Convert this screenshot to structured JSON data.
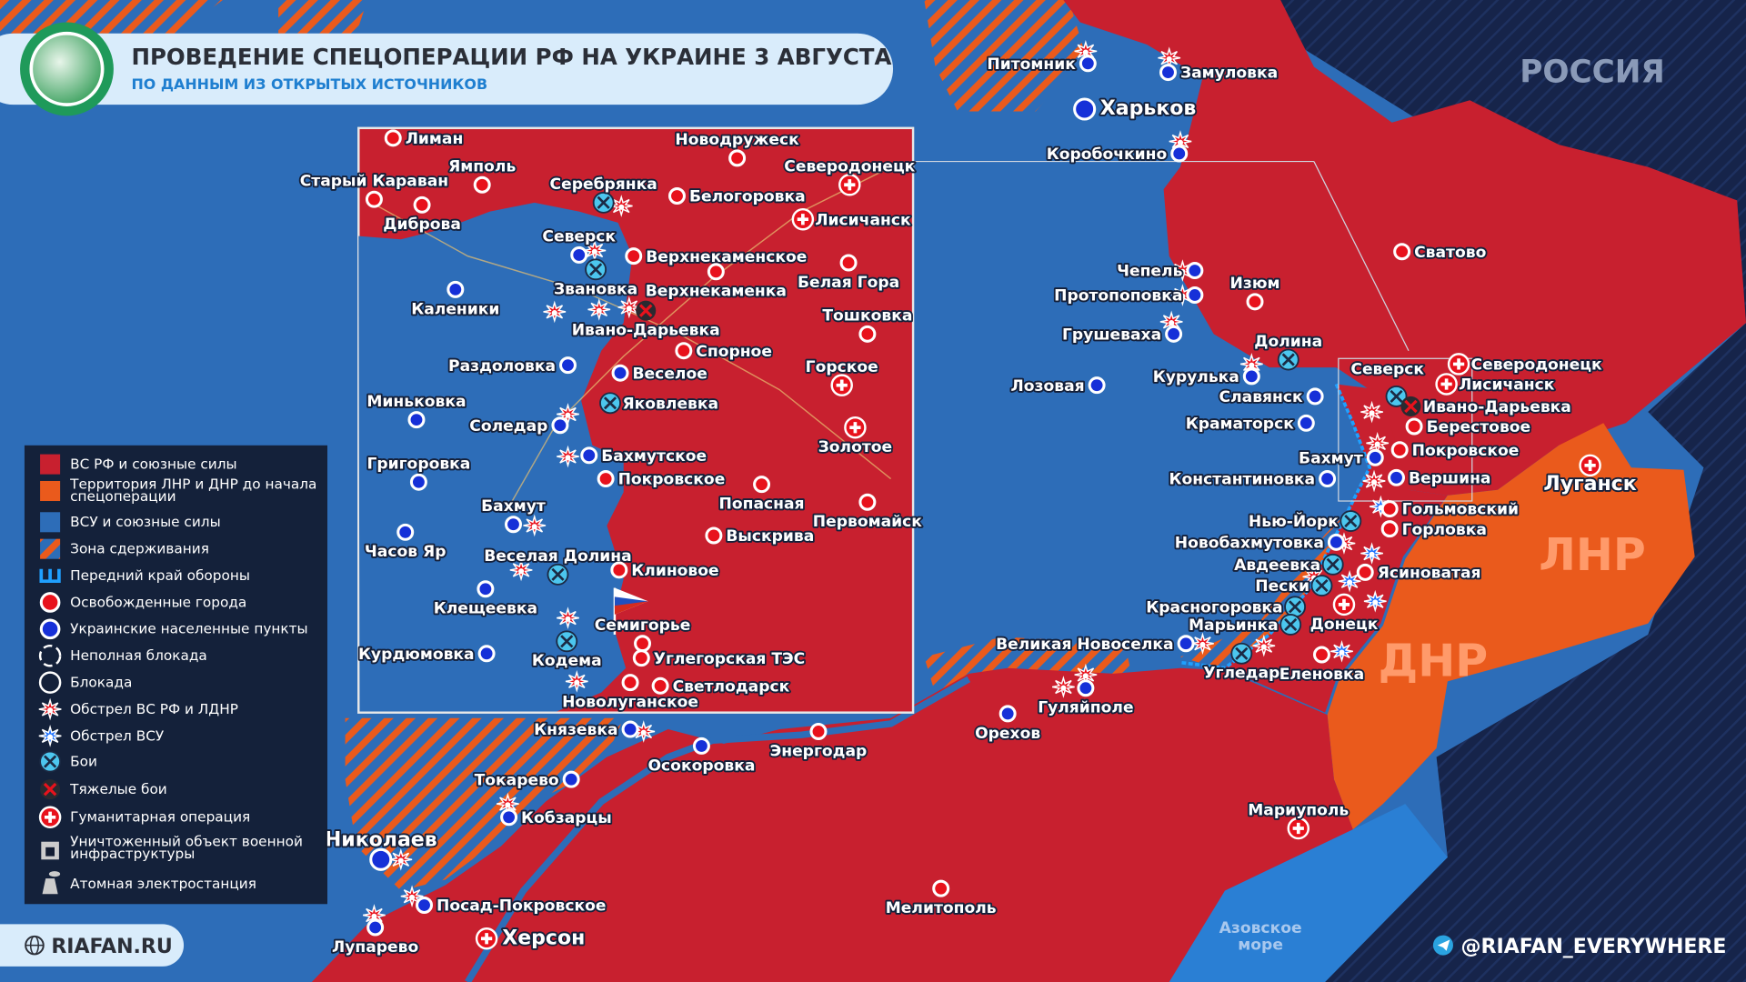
{
  "header": {
    "title": "ПРОВЕДЕНИЕ СПЕЦОПЕРАЦИИ РФ НА УКРАИНЕ 3 АВГУСТА",
    "subtitle": "ПО ДАННЫМ ИЗ ОТКРЫТЫХ ИСТОЧНИКОВ",
    "logo_icon": "globe-europe-icon"
  },
  "colors": {
    "russian_forces": "#c8202f",
    "lnr_dnr_territory": "#ea5a1c",
    "ukrainian_forces": "#2d6db8",
    "russia_territory": "#16244a",
    "sea": "#2a7fd4"
  },
  "legend": [
    {
      "icon": "red-square-icon",
      "label": "ВС РФ и союзные силы"
    },
    {
      "icon": "orange-square-icon",
      "label": "Территория ЛНР и ДНР до начала спецоперации"
    },
    {
      "icon": "blue-square-icon",
      "label": "ВСУ и союзные силы"
    },
    {
      "icon": "hatch-icon",
      "label": "Зона сдерживания"
    },
    {
      "icon": "defense-line-icon",
      "label": "Передний край обороны"
    },
    {
      "icon": "red-dot-icon",
      "label": "Освобожденные города"
    },
    {
      "icon": "blue-dot-icon",
      "label": "Украинские населенные пункты"
    },
    {
      "icon": "dashed-circle-icon",
      "label": "Неполная блокада"
    },
    {
      "icon": "circle-icon",
      "label": "Блокада"
    },
    {
      "icon": "red-explosion-icon",
      "label": "Обстрел ВС РФ и ЛДНР"
    },
    {
      "icon": "blue-explosion-icon",
      "label": "Обстрел ВСУ"
    },
    {
      "icon": "crossed-swords-icon",
      "label": "Бои"
    },
    {
      "icon": "red-x-icon",
      "label": "Тяжелые бои"
    },
    {
      "icon": "red-cross-icon",
      "label": "Гуманитарная операция"
    },
    {
      "icon": "destroyed-building-icon",
      "label": "Уничтоженный объект военной инфраструктуры"
    },
    {
      "icon": "nuclear-plant-icon",
      "label": "Атомная электростанция"
    }
  ],
  "regions": {
    "russia": "РОССИЯ",
    "lnr": "ЛНР",
    "dnr": "ДНР",
    "sea": "Азовское море"
  },
  "cities": [
    {
      "name": "Питомник",
      "marker": "ukrainian"
    },
    {
      "name": "Замуловка",
      "marker": "ukrainian"
    },
    {
      "name": "Харьков",
      "marker": "ukrainian"
    },
    {
      "name": "Коробочкино",
      "marker": "ukrainian"
    },
    {
      "name": "Сватово",
      "marker": "liberated"
    },
    {
      "name": "Чепель",
      "marker": "ukrainian"
    },
    {
      "name": "Изюм",
      "marker": "liberated"
    },
    {
      "name": "Протопоповка",
      "marker": "ukrainian"
    },
    {
      "name": "Грушеваха",
      "marker": "ukrainian"
    },
    {
      "name": "Долина",
      "marker": "fighting"
    },
    {
      "name": "Лозовая",
      "marker": "ukrainian"
    },
    {
      "name": "Курулька",
      "marker": "ukrainian"
    },
    {
      "name": "Славянск",
      "marker": "ukrainian"
    },
    {
      "name": "Краматорск",
      "marker": "ukrainian"
    },
    {
      "name": "Северск",
      "marker": "fighting"
    },
    {
      "name": "Северодонецк",
      "marker": "humanitarian"
    },
    {
      "name": "Лисичанск",
      "marker": "humanitarian"
    },
    {
      "name": "Ивано-Дарьевка",
      "marker": "heavy"
    },
    {
      "name": "Берестовое",
      "marker": "liberated"
    },
    {
      "name": "Покровское",
      "marker": "liberated"
    },
    {
      "name": "Бахмут",
      "marker": "ukrainian"
    },
    {
      "name": "Вершина",
      "marker": "ukrainian"
    },
    {
      "name": "Константиновка",
      "marker": "ukrainian"
    },
    {
      "name": "Гольмовский",
      "marker": "liberated"
    },
    {
      "name": "Горловка",
      "marker": "liberated"
    },
    {
      "name": "Нью-Йорк",
      "marker": "fighting"
    },
    {
      "name": "Новобахмутовка",
      "marker": "ukrainian"
    },
    {
      "name": "Авдеевка",
      "marker": "fighting"
    },
    {
      "name": "Ясиноватая",
      "marker": "liberated"
    },
    {
      "name": "Пески",
      "marker": "fighting"
    },
    {
      "name": "Красногоровка",
      "marker": "fighting"
    },
    {
      "name": "Донецк",
      "marker": "humanitarian"
    },
    {
      "name": "Марьинка",
      "marker": "fighting"
    },
    {
      "name": "Луганск",
      "marker": "humanitarian"
    },
    {
      "name": "Великая Новоселка",
      "marker": "ukrainian"
    },
    {
      "name": "Угледар",
      "marker": "fighting"
    },
    {
      "name": "Еленовка",
      "marker": "liberated"
    },
    {
      "name": "Гуляйполе",
      "marker": "ukrainian"
    },
    {
      "name": "Орехов",
      "marker": "ukrainian"
    },
    {
      "name": "Мариуполь",
      "marker": "humanitarian"
    },
    {
      "name": "Мелитополь",
      "marker": "liberated"
    },
    {
      "name": "Энергодар",
      "marker": "liberated"
    },
    {
      "name": "Осокоровка",
      "marker": "ukrainian"
    },
    {
      "name": "Князевка",
      "marker": "ukrainian"
    },
    {
      "name": "Токарево",
      "marker": "ukrainian"
    },
    {
      "name": "Кобзарцы",
      "marker": "ukrainian"
    },
    {
      "name": "Николаев",
      "marker": "ukrainian"
    },
    {
      "name": "Посад-Покровское",
      "marker": "ukrainian"
    },
    {
      "name": "Лупарево",
      "marker": "ukrainian"
    },
    {
      "name": "Херсон",
      "marker": "humanitarian"
    }
  ],
  "inset_cities": [
    {
      "name": "Лиман",
      "marker": "liberated"
    },
    {
      "name": "Старый Караван",
      "marker": "liberated"
    },
    {
      "name": "Ямполь",
      "marker": "liberated"
    },
    {
      "name": "Диброва",
      "marker": "liberated"
    },
    {
      "name": "Серебрянка",
      "marker": "fighting"
    },
    {
      "name": "Новодружеск",
      "marker": "liberated"
    },
    {
      "name": "Северодонецк",
      "marker": "humanitarian"
    },
    {
      "name": "Белогоровка",
      "marker": "liberated"
    },
    {
      "name": "Лисичанск",
      "marker": "humanitarian"
    },
    {
      "name": "Северск",
      "marker": "ukrainian"
    },
    {
      "name": "Звановка",
      "marker": "fighting"
    },
    {
      "name": "Верхнекаменское",
      "marker": "liberated"
    },
    {
      "name": "Верхнекаменка",
      "marker": "liberated"
    },
    {
      "name": "Белая Гора",
      "marker": "liberated"
    },
    {
      "name": "Каленики",
      "marker": "ukrainian"
    },
    {
      "name": "Ивано-Дарьевка",
      "marker": "heavy"
    },
    {
      "name": "Тошковка",
      "marker": "liberated"
    },
    {
      "name": "Спорное",
      "marker": "liberated"
    },
    {
      "name": "Раздоловка",
      "marker": "ukrainian"
    },
    {
      "name": "Веселое",
      "marker": "ukrainian"
    },
    {
      "name": "Горское",
      "marker": "humanitarian"
    },
    {
      "name": "Миньковка",
      "marker": "ukrainian"
    },
    {
      "name": "Яковлевка",
      "marker": "fighting"
    },
    {
      "name": "Соледар",
      "marker": "ukrainian"
    },
    {
      "name": "Золотое",
      "marker": "humanitarian"
    },
    {
      "name": "Бахмутское",
      "marker": "ukrainian"
    },
    {
      "name": "Григоровка",
      "marker": "ukrainian"
    },
    {
      "name": "Покровское",
      "marker": "liberated"
    },
    {
      "name": "Попасная",
      "marker": "liberated"
    },
    {
      "name": "Бахмут",
      "marker": "ukrainian"
    },
    {
      "name": "Первомайск",
      "marker": "liberated"
    },
    {
      "name": "Часов Яр",
      "marker": "ukrainian"
    },
    {
      "name": "Выскрива",
      "marker": "liberated"
    },
    {
      "name": "Веселая Долина",
      "marker": "fighting"
    },
    {
      "name": "Клиновое",
      "marker": "liberated"
    },
    {
      "name": "Клещеевка",
      "marker": "ukrainian"
    },
    {
      "name": "Семигорье",
      "marker": "liberated"
    },
    {
      "name": "Курдюмовка",
      "marker": "ukrainian"
    },
    {
      "name": "Кодема",
      "marker": "fighting"
    },
    {
      "name": "Углегорская ТЭС",
      "marker": "liberated"
    },
    {
      "name": "Светлодарск",
      "marker": "liberated"
    },
    {
      "name": "Новолуганское",
      "marker": "liberated"
    }
  ],
  "footer": {
    "site": "RIAFAN.RU",
    "telegram": "@RIAFAN_EVERYWHERE"
  }
}
